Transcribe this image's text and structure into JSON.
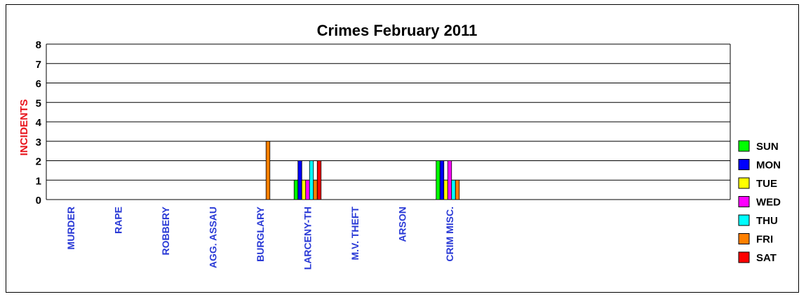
{
  "chart_data": {
    "type": "bar",
    "title": "Crimes February 2011",
    "ylabel": "INCIDENTS",
    "xlabel": "",
    "ylim": [
      0,
      8
    ],
    "yticks": [
      0,
      1,
      2,
      3,
      4,
      5,
      6,
      7,
      8
    ],
    "grid": true,
    "legend_position": "right",
    "categories": [
      "MURDER",
      "RAPE",
      "ROBBERY",
      "AGG. ASSAU",
      "BURGLARY",
      "LARCENY-TH",
      "M.V. THEFT",
      "ARSON",
      "CRIM MISC."
    ],
    "series": [
      {
        "name": "SUN",
        "color": "#00ff00",
        "values": [
          0,
          0,
          0,
          0,
          0,
          1,
          0,
          0,
          2
        ]
      },
      {
        "name": "MON",
        "color": "#0000ff",
        "values": [
          0,
          0,
          0,
          0,
          0,
          2,
          0,
          0,
          2
        ]
      },
      {
        "name": "TUE",
        "color": "#ffff00",
        "values": [
          0,
          0,
          0,
          0,
          0,
          1,
          0,
          0,
          1
        ]
      },
      {
        "name": "WED",
        "color": "#ff00ff",
        "values": [
          0,
          0,
          0,
          0,
          0,
          1,
          0,
          0,
          2
        ]
      },
      {
        "name": "THU",
        "color": "#00ffff",
        "values": [
          0,
          0,
          0,
          0,
          0,
          2,
          0,
          0,
          1
        ]
      },
      {
        "name": "FRI",
        "color": "#ff8000",
        "values": [
          0,
          0,
          0,
          0,
          3,
          1,
          0,
          0,
          1
        ]
      },
      {
        "name": "SAT",
        "color": "#ff0000",
        "values": [
          0,
          0,
          0,
          0,
          0,
          2,
          0,
          0,
          0
        ]
      }
    ]
  }
}
